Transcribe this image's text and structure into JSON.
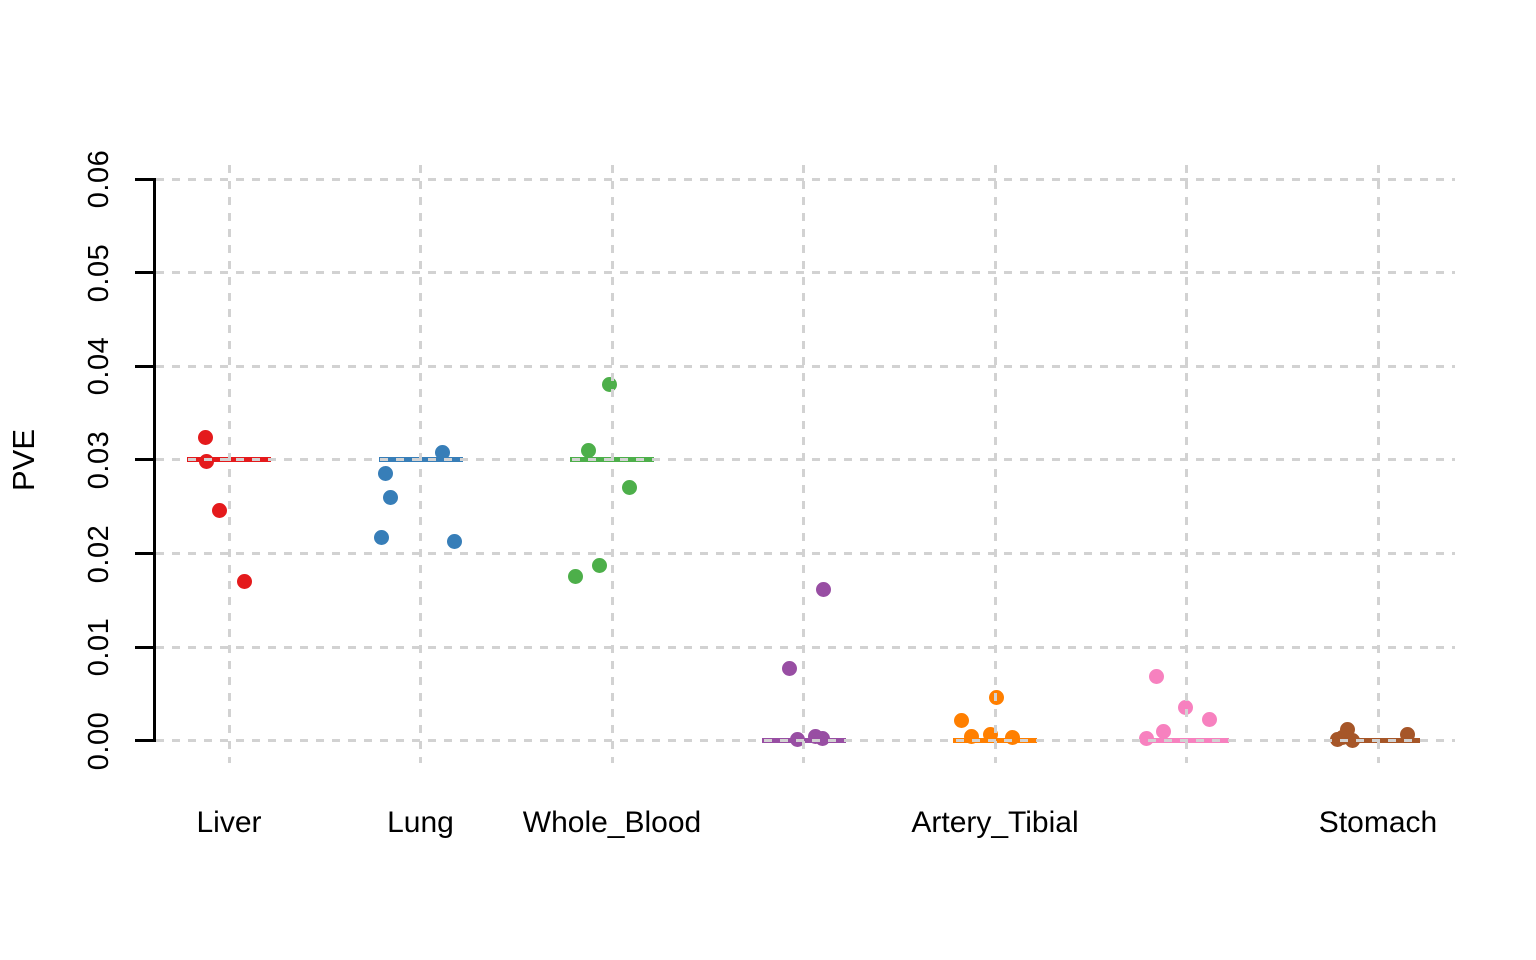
{
  "figure": {
    "background": "#ffffff",
    "grid_color": "#d2d2d2",
    "axis_color": "#000000"
  },
  "chart_data": {
    "type": "scatter",
    "subtype": "stripchart",
    "title": "",
    "xlabel": "",
    "ylabel": "PVE",
    "ylim": [
      0,
      0.06
    ],
    "y_ticks": [
      0.0,
      0.01,
      0.02,
      0.03,
      0.04,
      0.05,
      0.06
    ],
    "y_tick_labels": [
      "0.00",
      "0.01",
      "0.02",
      "0.03",
      "0.04",
      "0.05",
      "0.06"
    ],
    "grid": true,
    "grid_style": "dashed",
    "legend_position": "none",
    "x_tick_labels_shown": [
      "Liver",
      "Lung",
      "Whole_Blood",
      "Artery_Tibial",
      "Stomach"
    ],
    "groups": [
      {
        "label": "Liver",
        "color": "#e41a1c",
        "reference_line": 0.03,
        "points": [
          {
            "value": 0.0324,
            "dx": -24
          },
          {
            "value": 0.0298,
            "dx": -23
          },
          {
            "value": 0.0246,
            "dx": -10
          },
          {
            "value": 0.017,
            "dx": 15
          }
        ]
      },
      {
        "label": "Lung",
        "color": "#377eb8",
        "reference_line": 0.03,
        "points": [
          {
            "value": 0.0308,
            "dx": 22
          },
          {
            "value": 0.0286,
            "dx": -35
          },
          {
            "value": 0.026,
            "dx": -30
          },
          {
            "value": 0.0217,
            "dx": -39
          },
          {
            "value": 0.0213,
            "dx": 34
          }
        ]
      },
      {
        "label": "Whole_Blood",
        "color": "#4daf4a",
        "reference_line": 0.03,
        "points": [
          {
            "value": 0.0381,
            "dx": -3
          },
          {
            "value": 0.031,
            "dx": -24
          },
          {
            "value": 0.0271,
            "dx": 17
          },
          {
            "value": 0.0187,
            "dx": -13
          },
          {
            "value": 0.0175,
            "dx": -37
          }
        ]
      },
      {
        "label": "",
        "color": "#984ea3",
        "reference_line": 0.0,
        "points": [
          {
            "value": 0.0162,
            "dx": 20
          },
          {
            "value": 0.0077,
            "dx": -14
          },
          {
            "value": 0.0004,
            "dx": 12
          },
          {
            "value": 0.0002,
            "dx": 19
          },
          {
            "value": 0.0001,
            "dx": -6
          }
        ]
      },
      {
        "label": "Artery_Tibial",
        "color": "#ff7f00",
        "reference_line": 0.0,
        "points": [
          {
            "value": 0.0046,
            "dx": 1
          },
          {
            "value": 0.0022,
            "dx": -34
          },
          {
            "value": 0.0007,
            "dx": -5
          },
          {
            "value": 0.0005,
            "dx": -24
          },
          {
            "value": 0.0003,
            "dx": 17
          }
        ]
      },
      {
        "label": "",
        "color": "#f781bf",
        "reference_line": 0.0,
        "points": [
          {
            "value": 0.0069,
            "dx": -30
          },
          {
            "value": 0.0035,
            "dx": -1
          },
          {
            "value": 0.0023,
            "dx": 23
          },
          {
            "value": 0.001,
            "dx": -23
          },
          {
            "value": 0.0002,
            "dx": -40
          }
        ]
      },
      {
        "label": "Stomach",
        "color": "#a65628",
        "reference_line": 0.0,
        "points": [
          {
            "value": 0.0012,
            "dx": -31
          },
          {
            "value": 0.0007,
            "dx": 29
          },
          {
            "value": 0.0003,
            "dx": -36
          },
          {
            "value": 0.0001,
            "dx": -41
          },
          {
            "value": 0.0,
            "dx": -26
          }
        ]
      }
    ]
  }
}
